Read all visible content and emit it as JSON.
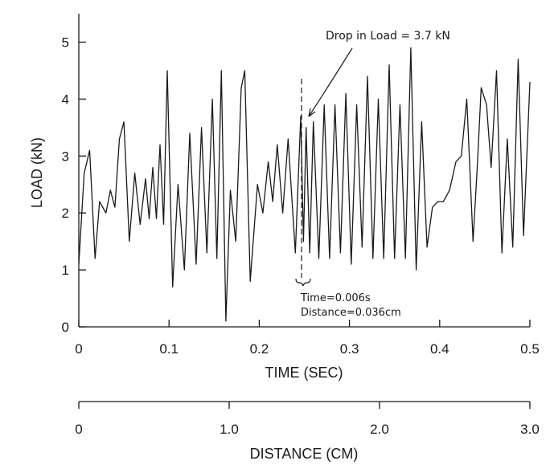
{
  "chart_data": {
    "type": "line",
    "xlabel": "TIME (SEC)",
    "ylabel": "LOAD (kN)",
    "xlim": [
      0,
      0.5
    ],
    "ylim": [
      0,
      5.5
    ],
    "x_ticks": [
      0,
      0.1,
      0.2,
      0.3,
      0.4,
      0.5
    ],
    "x_tick_labels": [
      "0",
      "0.1",
      "0.2",
      "0.3",
      "0.4",
      "0.5"
    ],
    "y_ticks": [
      0,
      1,
      2,
      3,
      4,
      5
    ],
    "y_tick_labels": [
      "0",
      "1",
      "2",
      "3",
      "4",
      "5"
    ],
    "secondary_axis": {
      "label": "DISTANCE (CM)",
      "range": [
        0,
        3.0
      ],
      "ticks": [
        0,
        1.0,
        2.0,
        3.0
      ],
      "tick_labels": [
        "0",
        "1.0",
        "2.0",
        "3.0"
      ]
    },
    "annotations": {
      "drop": "Drop in Load = 3.7 kN",
      "time": "Time=0.006s",
      "distance": "Distance=0.036cm"
    },
    "series": [
      {
        "x": [
          0.0,
          0.006,
          0.012,
          0.018,
          0.023,
          0.03,
          0.035,
          0.04,
          0.045,
          0.05,
          0.056,
          0.062,
          0.068,
          0.074,
          0.078,
          0.082,
          0.086,
          0.09,
          0.094,
          0.098,
          0.104,
          0.11,
          0.117,
          0.123,
          0.13,
          0.136,
          0.142,
          0.148,
          0.153,
          0.158,
          0.163,
          0.168,
          0.174,
          0.18,
          0.184,
          0.19,
          0.198,
          0.204,
          0.21,
          0.215,
          0.22,
          0.226,
          0.232,
          0.24,
          0.246,
          0.249,
          0.252,
          0.256,
          0.26,
          0.266,
          0.272,
          0.278,
          0.284,
          0.29,
          0.296,
          0.302,
          0.308,
          0.314,
          0.32,
          0.326,
          0.332,
          0.338,
          0.344,
          0.35,
          0.356,
          0.362,
          0.368,
          0.374,
          0.38,
          0.386,
          0.392,
          0.398,
          0.404,
          0.411,
          0.418,
          0.424,
          0.43,
          0.437,
          0.442,
          0.446,
          0.452,
          0.457,
          0.463,
          0.469,
          0.475,
          0.481,
          0.487,
          0.493,
          0.5
        ],
        "y": [
          1.1,
          2.7,
          3.1,
          1.2,
          2.2,
          2.0,
          2.4,
          2.1,
          3.3,
          3.6,
          1.5,
          2.7,
          1.8,
          2.6,
          1.9,
          2.8,
          1.9,
          3.2,
          1.8,
          4.5,
          0.7,
          2.5,
          1.0,
          3.4,
          1.1,
          3.5,
          1.3,
          4.0,
          1.2,
          4.5,
          0.1,
          2.4,
          1.5,
          4.2,
          4.5,
          0.8,
          2.5,
          2.0,
          2.9,
          2.2,
          3.2,
          2.0,
          3.3,
          1.3,
          3.7,
          1.5,
          3.5,
          1.3,
          3.6,
          1.2,
          3.9,
          1.2,
          3.9,
          1.3,
          4.1,
          1.1,
          3.9,
          1.4,
          4.4,
          1.2,
          4.0,
          1.2,
          4.6,
          1.2,
          3.9,
          1.2,
          4.9,
          1.0,
          3.6,
          1.4,
          2.1,
          2.2,
          2.2,
          2.4,
          2.9,
          3.0,
          4.0,
          1.5,
          2.9,
          4.2,
          3.9,
          2.8,
          4.5,
          1.3,
          3.3,
          1.4,
          4.7,
          1.6,
          4.3
        ]
      }
    ]
  }
}
